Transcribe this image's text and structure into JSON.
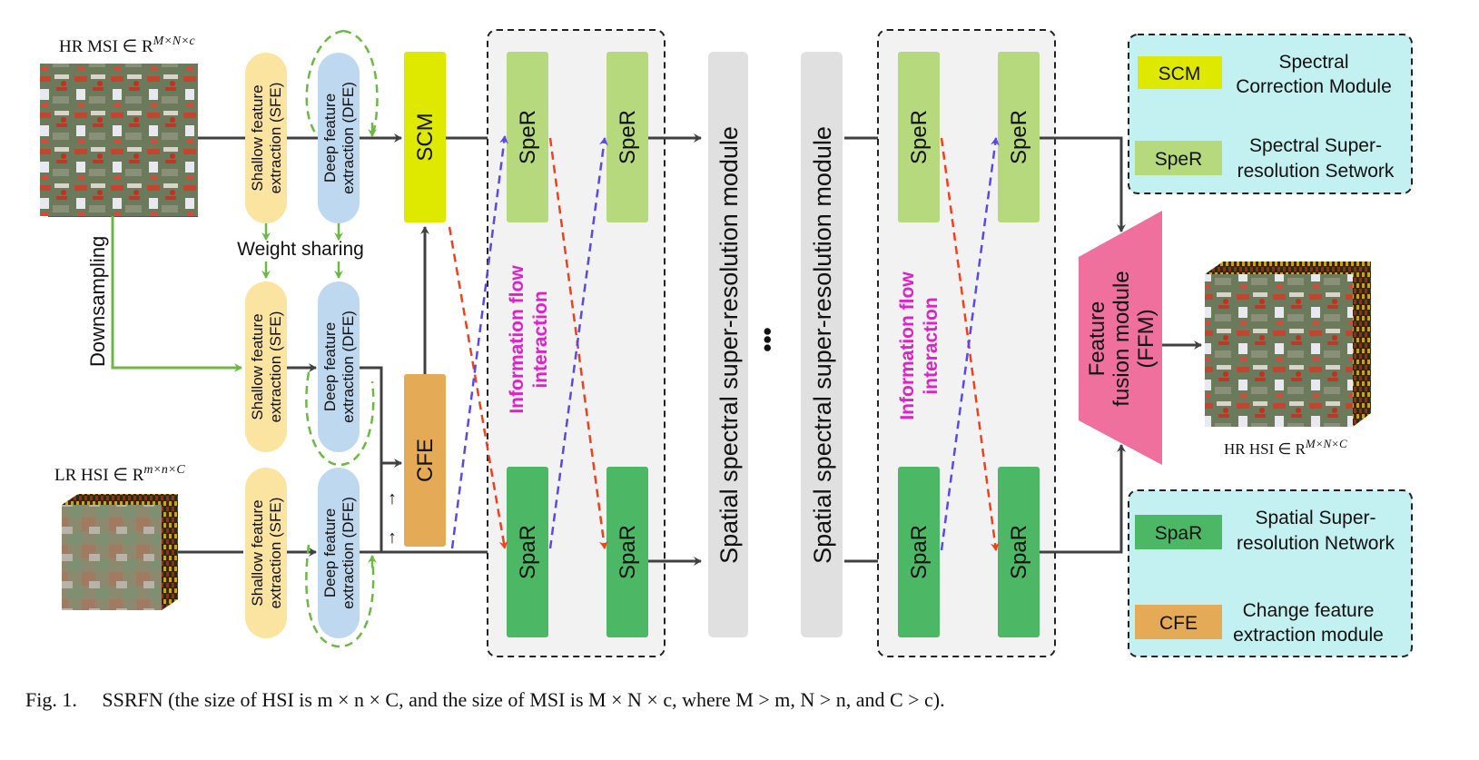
{
  "caption": {
    "label": "Fig. 1.",
    "text": "SSRFN (the size of HSI is m × n × C, and the size of MSI is M × N × c, where M > m, N > n, and C > c)."
  },
  "inputs": {
    "hr_msi_label": "HR MSI ∈ R",
    "hr_msi_sup": "M×N×c",
    "lr_hsi_label": "LR HSI ∈ R",
    "lr_hsi_sup": "m×n×C",
    "downsampling": "Downsampling",
    "weight_sharing": "Weight sharing"
  },
  "blocks": {
    "sfe": [
      "Shallow feature",
      "extraction (SFE)"
    ],
    "dfe": [
      "Deep feature",
      "extraction (DFE)"
    ],
    "scm": "SCM",
    "cfe": "CFE",
    "sper": "SpeR",
    "spar": "SpaR",
    "ssr_module": "Spatial spectral super-resolution module",
    "info_flow": [
      "Information flow",
      "interaction"
    ],
    "ellipsis": "•••",
    "ffm": [
      "Feature",
      "fusion module",
      "(FFM)"
    ]
  },
  "output": {
    "hr_hsi_label": "HR HSI ∈ R",
    "hr_hsi_sup": "M×N×C"
  },
  "legend_top": [
    {
      "key": "SCM",
      "desc": [
        "Spectral",
        "Correction Module"
      ],
      "color": "#dfe900"
    },
    {
      "key": "SpeR",
      "desc": [
        "Spectral Super-",
        "resolution Setwork"
      ],
      "color": "#b5d97c"
    }
  ],
  "legend_bottom": [
    {
      "key": "SpaR",
      "desc": [
        "Spatial Super-",
        "resolution Network"
      ],
      "color": "#4cb865"
    },
    {
      "key": "CFE",
      "desc": [
        "Change feature",
        "extraction module"
      ],
      "color": "#e5aa55"
    }
  ],
  "colors": {
    "sfe": "#fbe3a0",
    "dfe": "#bed8f0",
    "scm": "#dfe900",
    "cfe": "#e5aa55",
    "sper": "#b5d97c",
    "spar": "#4cb865",
    "ssr": "#e0e0e0",
    "ffm": "#ef6f9d",
    "legend_bg": "#c3f0f0",
    "info_text": "#e020c8",
    "green_arrow": "#6cb845",
    "red_dash": "#f0401e",
    "blue_dash": "#5a48e8",
    "arrow": "#404040"
  }
}
